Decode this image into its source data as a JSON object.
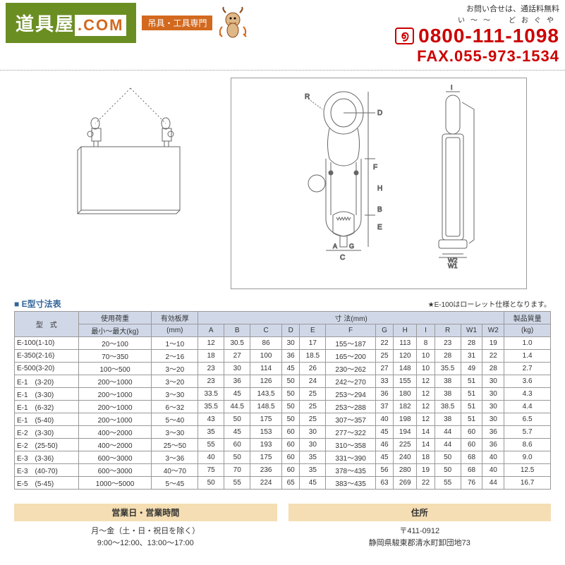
{
  "header": {
    "logo_main": "道具屋",
    "logo_suffix": ".COM",
    "logo_sub": "吊具・工具専門",
    "contact_label": "お問い合せは、通話料無料",
    "phone_ruby": "い～～　どおぐや",
    "freedial": "♫",
    "phone": "0800-111-1098",
    "fax": "FAX.055-973-1534"
  },
  "table": {
    "title": "■ E型寸法表",
    "note": "★E-100はローレット仕様となります。",
    "headers": {
      "model": "型　式",
      "load": "使用荷重",
      "load_sub": "最小～最大(kg)",
      "thickness": "有効板厚",
      "thickness_unit": "(mm)",
      "dim": "寸 法(mm)",
      "mass": "製品質量",
      "mass_unit": "(kg)",
      "cols": [
        "A",
        "B",
        "C",
        "D",
        "E",
        "F",
        "G",
        "H",
        "I",
        "R",
        "W1",
        "W2"
      ]
    },
    "rows": [
      {
        "model": "E-100(1-10)",
        "load": "20～100",
        "thick": "1～10",
        "v": [
          "12",
          "30.5",
          "86",
          "30",
          "17",
          "155～187",
          "22",
          "113",
          "8",
          "23",
          "28",
          "19"
        ],
        "mass": "1.0"
      },
      {
        "model": "E-350(2-16)",
        "load": "70～350",
        "thick": "2～16",
        "v": [
          "18",
          "27",
          "100",
          "36",
          "18.5",
          "165～200",
          "25",
          "120",
          "10",
          "28",
          "31",
          "22"
        ],
        "mass": "1.4"
      },
      {
        "model": "E-500(3-20)",
        "load": "100～500",
        "thick": "3～20",
        "v": [
          "23",
          "30",
          "114",
          "45",
          "26",
          "230～262",
          "27",
          "148",
          "10",
          "35.5",
          "49",
          "28"
        ],
        "mass": "2.7"
      },
      {
        "model": "E-1　(3-20)",
        "load": "200～1000",
        "thick": "3～20",
        "v": [
          "23",
          "36",
          "126",
          "50",
          "24",
          "242～270",
          "33",
          "155",
          "12",
          "38",
          "51",
          "30"
        ],
        "mass": "3.6"
      },
      {
        "model": "E-1　(3-30)",
        "load": "200～1000",
        "thick": "3～30",
        "v": [
          "33.5",
          "45",
          "143.5",
          "50",
          "25",
          "253～294",
          "36",
          "180",
          "12",
          "38",
          "51",
          "30"
        ],
        "mass": "4.3"
      },
      {
        "model": "E-1　(6-32)",
        "load": "200～1000",
        "thick": "6～32",
        "v": [
          "35.5",
          "44.5",
          "148.5",
          "50",
          "25",
          "253～288",
          "37",
          "182",
          "12",
          "38.5",
          "51",
          "30"
        ],
        "mass": "4.4"
      },
      {
        "model": "E-1　(5-40)",
        "load": "200～1000",
        "thick": "5～40",
        "v": [
          "43",
          "50",
          "175",
          "50",
          "25",
          "307～357",
          "40",
          "198",
          "12",
          "38",
          "51",
          "30"
        ],
        "mass": "6.5"
      },
      {
        "model": "E-2　(3-30)",
        "load": "400～2000",
        "thick": "3～30",
        "v": [
          "35",
          "45",
          "153",
          "60",
          "30",
          "277～322",
          "45",
          "194",
          "14",
          "44",
          "60",
          "36"
        ],
        "mass": "5.7"
      },
      {
        "model": "E-2　(25-50)",
        "load": "400～2000",
        "thick": "25～50",
        "v": [
          "55",
          "60",
          "193",
          "60",
          "30",
          "310～358",
          "46",
          "225",
          "14",
          "44",
          "60",
          "36"
        ],
        "mass": "8.6"
      },
      {
        "model": "E-3　(3-36)",
        "load": "600～3000",
        "thick": "3～36",
        "v": [
          "40",
          "50",
          "175",
          "60",
          "35",
          "331～390",
          "45",
          "240",
          "18",
          "50",
          "68",
          "40"
        ],
        "mass": "9.0"
      },
      {
        "model": "E-3　(40-70)",
        "load": "600～3000",
        "thick": "40～70",
        "v": [
          "75",
          "70",
          "236",
          "60",
          "35",
          "378～435",
          "56",
          "280",
          "19",
          "50",
          "68",
          "40"
        ],
        "mass": "12.5"
      },
      {
        "model": "E-5　(5-45)",
        "load": "1000～5000",
        "thick": "5～45",
        "v": [
          "50",
          "55",
          "224",
          "65",
          "45",
          "383～435",
          "63",
          "269",
          "22",
          "55",
          "76",
          "44"
        ],
        "mass": "16.7"
      }
    ]
  },
  "footer": {
    "col1_head": "営業日・営業時間",
    "col1_line1": "月～金（土・日・祝日を除く）",
    "col1_line2": "9:00～12:00、13:00～17:00",
    "col2_head": "住所",
    "col2_line1": "〒411-0912",
    "col2_line2": "静岡県駿東郡清水町卸団地73"
  },
  "colors": {
    "logo_bg": "#6b8e23",
    "accent": "#d2691e",
    "phone": "#c00",
    "table_head": "#d0d8e8",
    "footer_head": "#f5deb3",
    "title": "#369"
  }
}
